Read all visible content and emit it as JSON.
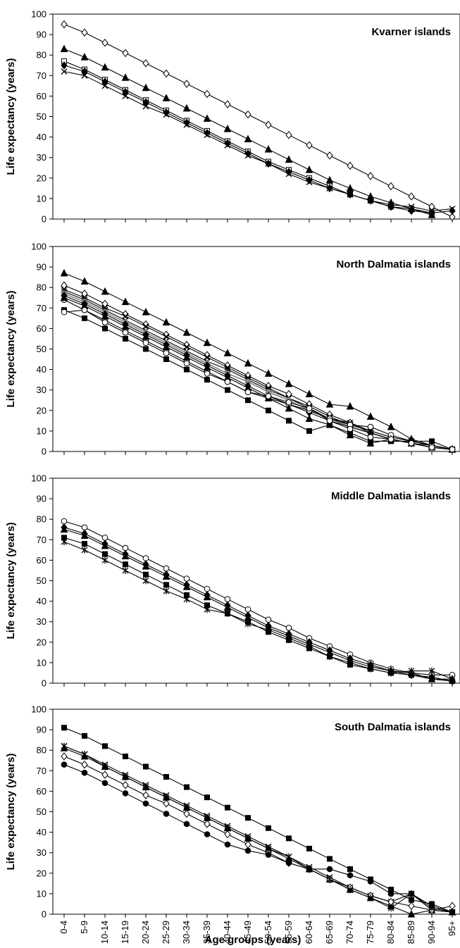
{
  "chart_data": [
    {
      "type": "line",
      "title": "Kvarner islands",
      "ylabel": "Life expectancy (years)",
      "ylim": [
        0,
        100
      ],
      "yticks": [
        0,
        10,
        20,
        30,
        40,
        50,
        60,
        70,
        80,
        90,
        100
      ],
      "series": [
        {
          "marker": "diamond-open",
          "values": [
            95,
            91,
            86,
            81,
            76,
            71,
            66,
            61,
            56,
            51,
            46,
            41,
            36,
            31,
            26,
            21,
            16,
            11,
            6,
            1
          ]
        },
        {
          "marker": "triangle-filled",
          "values": [
            83,
            79,
            74,
            69,
            64,
            59,
            54,
            49,
            44,
            39,
            34,
            29,
            24,
            19,
            15,
            11,
            8,
            5,
            2,
            null
          ]
        },
        {
          "marker": "square-open",
          "values": [
            77,
            73,
            68,
            63,
            58,
            53,
            48,
            43,
            38,
            33,
            28,
            24,
            20,
            16,
            12,
            9,
            6,
            5,
            3,
            null
          ]
        },
        {
          "marker": "diamond-filled",
          "values": [
            75,
            72,
            67,
            62,
            57,
            52,
            47,
            42,
            37,
            32,
            27,
            23,
            19,
            15,
            12,
            9,
            6,
            4,
            3,
            4
          ]
        },
        {
          "marker": "x",
          "values": [
            72,
            70,
            65,
            60,
            55,
            51,
            46,
            41,
            36,
            31,
            27,
            22,
            18,
            15,
            12,
            9,
            7,
            6,
            4,
            5
          ]
        }
      ]
    },
    {
      "type": "line",
      "title": "North Dalmatia islands",
      "ylabel": "Life expectancy (years)",
      "ylim": [
        0,
        100
      ],
      "yticks": [
        0,
        10,
        20,
        30,
        40,
        50,
        60,
        70,
        80,
        90,
        100
      ],
      "series": [
        {
          "marker": "triangle-filled",
          "values": [
            87,
            83,
            78,
            73,
            68,
            63,
            58,
            53,
            48,
            43,
            38,
            33,
            28,
            23,
            22,
            17,
            12,
            6,
            3,
            1
          ]
        },
        {
          "marker": "diamond-open",
          "values": [
            81,
            77,
            72,
            67,
            62,
            57,
            52,
            47,
            42,
            37,
            32,
            28,
            23,
            18,
            14,
            10,
            7,
            5,
            3,
            1
          ]
        },
        {
          "marker": "x",
          "values": [
            79,
            75,
            70,
            66,
            61,
            56,
            51,
            46,
            41,
            36,
            31,
            26,
            22,
            17,
            13,
            10,
            7,
            5,
            3,
            1
          ]
        },
        {
          "marker": "x",
          "values": [
            78,
            74,
            69,
            64,
            59,
            54,
            49,
            44,
            40,
            35,
            30,
            26,
            21,
            16,
            14,
            9,
            6,
            4,
            2,
            1
          ]
        },
        {
          "marker": "circle-gray",
          "values": [
            77,
            73,
            68,
            63,
            58,
            53,
            48,
            43,
            38,
            34,
            29,
            25,
            20,
            16,
            12,
            9,
            6,
            4,
            2,
            1
          ]
        },
        {
          "marker": "diamond-filled",
          "values": [
            76,
            72,
            67,
            62,
            57,
            52,
            47,
            42,
            37,
            32,
            27,
            23,
            19,
            15,
            12,
            9,
            6,
            4,
            3,
            1
          ]
        },
        {
          "marker": "circle-open",
          "values": [
            74,
            69,
            64,
            59,
            54,
            49,
            44,
            39,
            34,
            29,
            26,
            23,
            20,
            16,
            13,
            12,
            8,
            5,
            3,
            1
          ]
        },
        {
          "marker": "triangle-filled",
          "values": [
            75,
            71,
            66,
            61,
            56,
            51,
            46,
            41,
            36,
            31,
            26,
            21,
            16,
            13,
            8,
            4,
            6,
            4,
            2,
            1
          ]
        },
        {
          "marker": "square-filled",
          "values": [
            69,
            65,
            60,
            55,
            50,
            45,
            40,
            35,
            30,
            25,
            20,
            15,
            10,
            13,
            9,
            5,
            5,
            5,
            5,
            1
          ]
        },
        {
          "marker": "circle-open",
          "values": [
            68,
            69,
            63,
            58,
            53,
            48,
            43,
            38,
            34,
            29,
            27,
            24,
            21,
            15,
            11,
            7,
            6,
            4,
            2,
            1
          ]
        }
      ]
    },
    {
      "type": "line",
      "title": "Middle Dalmatia islands",
      "ylabel": "Life expectancy (years)",
      "ylim": [
        0,
        100
      ],
      "yticks": [
        0,
        10,
        20,
        30,
        40,
        50,
        60,
        70,
        80,
        90,
        100
      ],
      "series": [
        {
          "marker": "circle-open",
          "values": [
            79,
            76,
            71,
            66,
            61,
            56,
            51,
            46,
            41,
            36,
            31,
            27,
            22,
            18,
            14,
            10,
            7,
            5,
            4,
            4
          ]
        },
        {
          "marker": "diamond-filled",
          "values": [
            76,
            73,
            68,
            63,
            58,
            53,
            48,
            43,
            38,
            33,
            28,
            24,
            20,
            16,
            12,
            9,
            6,
            4,
            3,
            1
          ]
        },
        {
          "marker": "triangle-filled",
          "values": [
            75,
            72,
            67,
            62,
            57,
            52,
            47,
            42,
            37,
            32,
            27,
            23,
            19,
            15,
            11,
            8,
            6,
            5,
            2,
            2
          ]
        },
        {
          "marker": "square-filled",
          "values": [
            71,
            68,
            63,
            58,
            53,
            48,
            43,
            38,
            34,
            30,
            25,
            21,
            17,
            13,
            9,
            7,
            5,
            4,
            2,
            1
          ]
        },
        {
          "marker": "asterisk",
          "values": [
            69,
            65,
            60,
            55,
            50,
            45,
            41,
            36,
            34,
            29,
            26,
            22,
            18,
            13,
            10,
            7,
            5,
            6,
            6,
            2
          ]
        }
      ]
    },
    {
      "type": "line",
      "title": "South Dalmatia islands",
      "xlabel": "Age groups (years)",
      "ylabel": "Life expectancy (years)",
      "ylim": [
        0,
        100
      ],
      "yticks": [
        0,
        10,
        20,
        30,
        40,
        50,
        60,
        70,
        80,
        90,
        100
      ],
      "categories": [
        "0-4",
        "5-9",
        "10-14",
        "15-19",
        "20-24",
        "25-29",
        "30-34",
        "35-39",
        "40-44",
        "45-49",
        "50-54",
        "55-59",
        "60-64",
        "65-69",
        "70-74",
        "75-79",
        "80-84",
        "85-89",
        "90-94",
        "95+"
      ],
      "series": [
        {
          "marker": "square-filled",
          "values": [
            91,
            87,
            82,
            77,
            72,
            67,
            62,
            57,
            52,
            47,
            42,
            37,
            32,
            27,
            22,
            17,
            12,
            7,
            5,
            1
          ]
        },
        {
          "marker": "x",
          "values": [
            82,
            78,
            73,
            68,
            63,
            58,
            53,
            48,
            43,
            38,
            33,
            28,
            23,
            18,
            13,
            9,
            6,
            10,
            2,
            1
          ]
        },
        {
          "marker": "triangle-filled",
          "values": [
            81,
            77,
            72,
            67,
            62,
            57,
            52,
            47,
            42,
            37,
            32,
            27,
            22,
            17,
            12,
            8,
            4,
            0,
            2,
            1
          ]
        },
        {
          "marker": "diamond-open",
          "values": [
            77,
            73,
            68,
            63,
            58,
            54,
            49,
            44,
            39,
            34,
            30,
            25,
            22,
            17,
            13,
            9,
            6,
            4,
            2,
            4
          ]
        },
        {
          "marker": "circle-filled",
          "values": [
            73,
            69,
            64,
            59,
            54,
            49,
            44,
            39,
            34,
            31,
            29,
            25,
            22,
            22,
            19,
            16,
            10,
            10,
            4,
            1
          ]
        },
        {
          "marker": "asterisk",
          "values": [
            82,
            78,
            72,
            67,
            62,
            57,
            52,
            47,
            42,
            37,
            32,
            28,
            22,
            17,
            12,
            8,
            3,
            10,
            3,
            1
          ]
        }
      ]
    }
  ]
}
